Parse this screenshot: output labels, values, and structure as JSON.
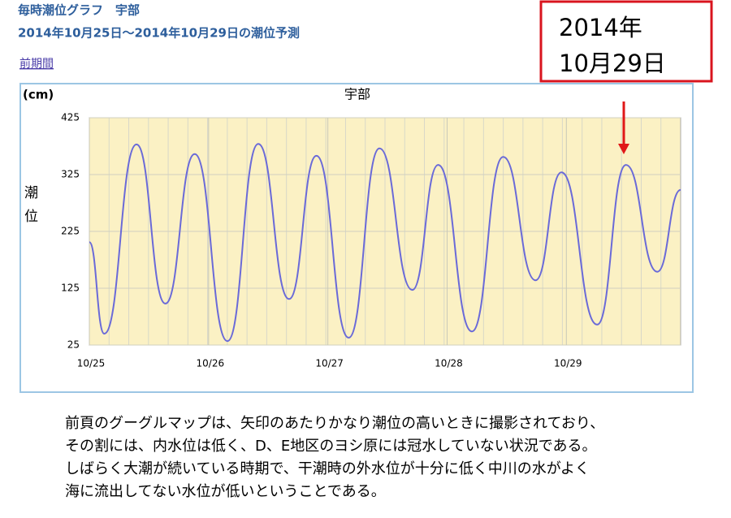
{
  "header": {
    "title": "毎時潮位グラフ　宇部",
    "subtitle": "2014年10月25日～2014年10月29日の潮位予測"
  },
  "link": "前期間",
  "callout": {
    "lines": [
      "2014年",
      "10月29日"
    ]
  },
  "body": {
    "lines": [
      "前頁のグーグルマップは、矢印のあたりかなり潮位の高いときに撮影されており、",
      "その割には、内水位は低く、D、E地区のヨシ原には冠水していない状況である。",
      "しばらく大潮が続いている時期で、干潮時の外水位が十分に低く中川の水がよく",
      "海に流出してない水位が低いということである。"
    ]
  },
  "chart_data": {
    "type": "line",
    "title": "宇部",
    "yunit": "(cm)",
    "ylabel": "潮位",
    "color": "#6a6ad8",
    "x": [
      0,
      3,
      9.5,
      15.3,
      21.2,
      27.8,
      34,
      40.2,
      45.7,
      52.2,
      58.4,
      65,
      70.2,
      77,
      83.3,
      89.8,
      95,
      102.2,
      108,
      114.3,
      119
    ],
    "values": [
      206,
      45,
      378,
      98,
      361,
      32,
      379,
      106,
      358,
      38,
      371,
      122,
      342,
      49,
      356,
      139,
      329,
      61,
      342,
      154,
      298
    ],
    "xlim": [
      0,
      119
    ],
    "xticks": [
      {
        "value": 0,
        "label": "10/25"
      },
      {
        "value": 24,
        "label": "10/26"
      },
      {
        "value": 48,
        "label": "10/27"
      },
      {
        "value": 72,
        "label": "10/28"
      },
      {
        "value": 96,
        "label": "10/29"
      }
    ],
    "ylim": [
      25,
      425
    ],
    "yticks": [
      25,
      125,
      225,
      325,
      425
    ],
    "grid": true
  }
}
